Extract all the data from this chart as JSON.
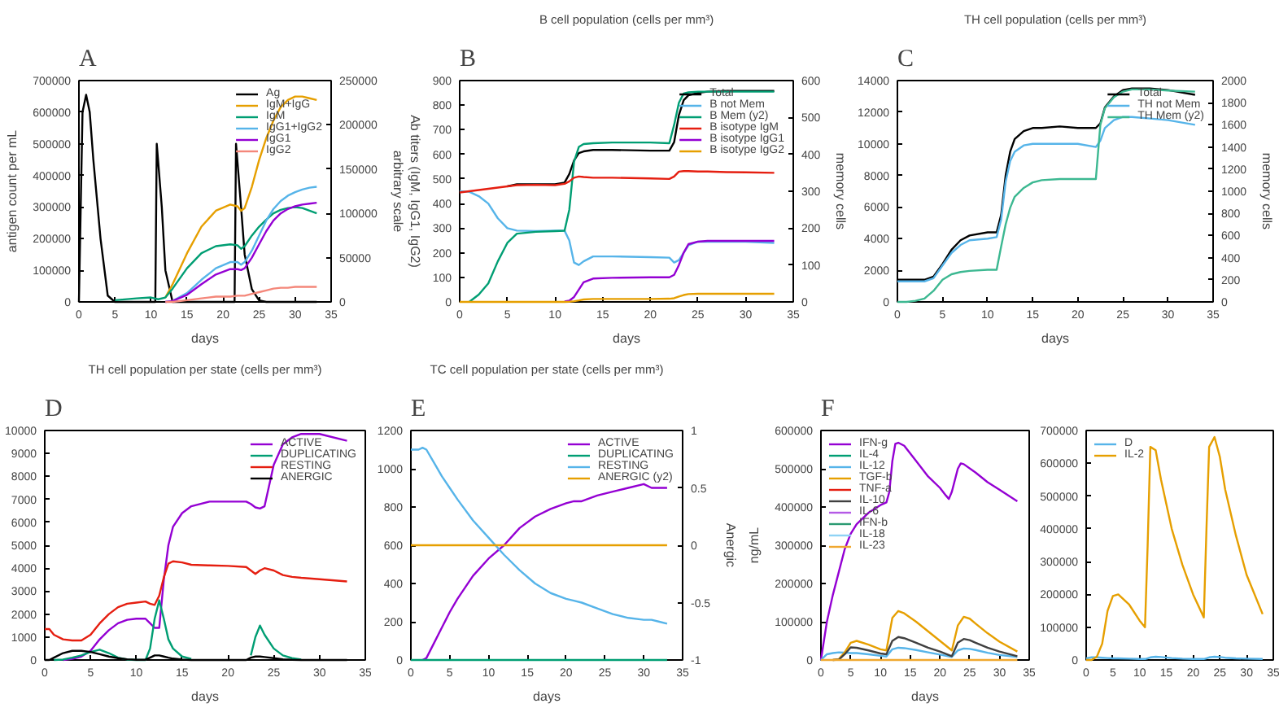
{
  "chart_data": [
    {
      "type": "line",
      "annotations": [
        "A"
      ],
      "xlabel": "days",
      "ylabel": "antigen count per mL",
      "y2label": "Ab titers (IgM, IgG1, IgG2)\narbitrary scale",
      "xlim": [
        0,
        35
      ],
      "xticks": [
        0,
        5,
        10,
        15,
        20,
        25,
        30,
        35
      ],
      "ylim": [
        0,
        700000
      ],
      "yticks": [
        0,
        100000,
        200000,
        300000,
        400000,
        500000,
        600000,
        700000
      ],
      "y2lim": [
        0,
        250000
      ],
      "y2ticks": [
        0,
        50000,
        100000,
        150000,
        200000,
        250000
      ],
      "legend": "top right",
      "x": [
        5,
        8,
        10,
        11,
        12,
        13,
        15,
        17,
        19,
        21,
        22,
        22.5,
        23,
        24,
        25,
        26,
        27,
        28,
        29,
        30,
        31,
        32,
        33
      ],
      "series": [
        {
          "name": "Ag",
          "color": "#000000",
          "x": [
            0,
            0.5,
            1,
            1.5,
            2,
            3,
            4,
            5,
            10,
            10.6,
            10.8,
            11.5,
            12,
            13,
            21,
            21.6,
            21.8,
            22.5,
            23,
            24,
            25,
            26,
            33
          ],
          "values": [
            0,
            600000,
            655000,
            600000,
            450000,
            200000,
            20000,
            0,
            0,
            0,
            500000,
            300000,
            100000,
            0,
            0,
            0,
            500000,
            300000,
            150000,
            40000,
            5000,
            0,
            0
          ]
        },
        {
          "name": "IgM+IgG",
          "color": "#e69f00",
          "axis": "y2",
          "values": [
            null,
            null,
            null,
            null,
            5000,
            20000,
            55000,
            85000,
            103000,
            110000,
            108000,
            103000,
            106000,
            130000,
            160000,
            185000,
            205000,
            220000,
            228000,
            232000,
            232000,
            230000,
            228000
          ]
        },
        {
          "name": "IgM",
          "color": "#009e73",
          "axis": "y2",
          "values": [
            2000,
            4000,
            5000,
            3000,
            5000,
            15000,
            38000,
            55000,
            63000,
            65000,
            64000,
            60000,
            63000,
            75000,
            85000,
            93000,
            100000,
            104000,
            106000,
            107000,
            106000,
            103000,
            100000
          ]
        },
        {
          "name": "IgG1+IgG2",
          "color": "#56b4e9",
          "axis": "y2",
          "values": [
            null,
            null,
            null,
            null,
            0,
            1000,
            10000,
            25000,
            38000,
            45000,
            45000,
            42000,
            45000,
            58000,
            75000,
            92000,
            105000,
            114000,
            120000,
            124000,
            127000,
            129000,
            130000
          ]
        },
        {
          "name": "IgG1",
          "color": "#9400d3",
          "axis": "y2",
          "values": [
            null,
            null,
            null,
            null,
            0,
            1000,
            8000,
            20000,
            31000,
            37000,
            37000,
            36000,
            38000,
            50000,
            65000,
            80000,
            92000,
            100000,
            105000,
            108000,
            110000,
            111000,
            112000
          ]
        },
        {
          "name": "IgG2",
          "color": "#f4877a",
          "axis": "y2",
          "values": [
            null,
            null,
            null,
            null,
            0,
            0,
            2000,
            4000,
            6000,
            6000,
            7000,
            7000,
            7000,
            9000,
            11000,
            13000,
            15000,
            16000,
            16000,
            17000,
            17000,
            17000,
            17000
          ]
        }
      ]
    },
    {
      "type": "line",
      "annotations": [
        "B"
      ],
      "title": "B cell population (cells per mm³)",
      "xlabel": "days",
      "y2label": "memory cells",
      "xlim": [
        0,
        35
      ],
      "xticks": [
        0,
        5,
        10,
        15,
        20,
        25,
        30,
        35
      ],
      "ylim": [
        0,
        900
      ],
      "yticks": [
        0,
        100,
        200,
        300,
        400,
        500,
        600,
        700,
        800,
        900
      ],
      "y2lim": [
        0,
        600
      ],
      "y2ticks": [
        0,
        100,
        200,
        300,
        400,
        500,
        600
      ],
      "legend": "top right",
      "x": [
        0,
        1,
        2,
        3,
        4,
        5,
        6,
        8,
        10,
        11,
        11.5,
        12,
        12.5,
        13,
        14,
        16,
        20,
        22,
        22.5,
        23,
        23.5,
        24,
        25,
        26,
        28,
        30,
        33
      ],
      "series": [
        {
          "name": "Total",
          "color": "#000000",
          "values": [
            null,
            null,
            null,
            null,
            null,
            470,
            478,
            478,
            478,
            485,
            520,
            575,
            605,
            612,
            618,
            618,
            615,
            615,
            650,
            760,
            820,
            840,
            850,
            855,
            858,
            858,
            858
          ]
        },
        {
          "name": "B not Mem",
          "color": "#56b4e9",
          "values": [
            450,
            448,
            430,
            400,
            340,
            300,
            290,
            288,
            290,
            290,
            250,
            160,
            150,
            165,
            185,
            185,
            182,
            180,
            160,
            170,
            200,
            230,
            245,
            245,
            245,
            245,
            240
          ]
        },
        {
          "name": "B Mem (y2)",
          "color": "#009e73",
          "axis": "y2",
          "values": [
            null,
            0,
            20,
            50,
            110,
            160,
            185,
            190,
            192,
            193,
            250,
            380,
            420,
            428,
            430,
            432,
            432,
            430,
            480,
            540,
            565,
            568,
            570,
            570,
            570,
            570,
            570
          ]
        },
        {
          "name": "B isotype IgM",
          "color": "#e51e10",
          "values": [
            445,
            450,
            455,
            460,
            465,
            470,
            475,
            476,
            475,
            480,
            490,
            505,
            510,
            508,
            505,
            505,
            502,
            500,
            510,
            530,
            532,
            532,
            530,
            530,
            528,
            527,
            525
          ]
        },
        {
          "name": "B isotype IgG1",
          "color": "#9400d3",
          "values": [
            null,
            null,
            null,
            null,
            null,
            null,
            null,
            null,
            null,
            2,
            5,
            20,
            50,
            80,
            95,
            98,
            100,
            100,
            110,
            150,
            200,
            235,
            245,
            248,
            248,
            248,
            248
          ]
        },
        {
          "name": "B isotype IgG2",
          "color": "#e69f00",
          "values": [
            0,
            0,
            0,
            0,
            0,
            0,
            0,
            0,
            0,
            0,
            1,
            3,
            6,
            10,
            12,
            12,
            12,
            13,
            15,
            22,
            28,
            32,
            33,
            33,
            33,
            33,
            33
          ]
        }
      ]
    },
    {
      "type": "line",
      "annotations": [
        "C"
      ],
      "title": "TH cell population (cells per mm³)",
      "xlabel": "days",
      "y2label": "memory cells",
      "xlim": [
        0,
        35
      ],
      "xticks": [
        0,
        5,
        10,
        15,
        20,
        25,
        30,
        35
      ],
      "ylim": [
        0,
        14000
      ],
      "yticks": [
        0,
        2000,
        4000,
        6000,
        8000,
        10000,
        12000,
        14000
      ],
      "y2lim": [
        0,
        2000
      ],
      "y2ticks": [
        0,
        200,
        400,
        600,
        800,
        1000,
        1200,
        1400,
        1600,
        1800,
        2000
      ],
      "legend": "top right",
      "x": [
        0,
        1,
        2,
        3,
        4,
        5,
        6,
        7,
        8,
        10,
        11,
        11.5,
        12,
        12.5,
        13,
        14,
        15,
        16,
        18,
        20,
        22,
        22.5,
        23,
        24,
        25,
        26,
        28,
        30,
        33
      ],
      "series": [
        {
          "name": "Total",
          "color": "#000000",
          "values": [
            1400,
            1400,
            1400,
            1400,
            1600,
            2400,
            3300,
            3900,
            4200,
            4400,
            4400,
            5500,
            8000,
            9500,
            10300,
            10800,
            11000,
            11000,
            11100,
            11000,
            11000,
            11300,
            12300,
            13000,
            13400,
            13500,
            13500,
            13400,
            13100
          ]
        },
        {
          "name": "TH not Mem",
          "color": "#56b4e9",
          "values": [
            1300,
            1300,
            1300,
            1300,
            1500,
            2300,
            3100,
            3600,
            3900,
            4000,
            4100,
            5200,
            7600,
            8900,
            9500,
            9900,
            10000,
            10000,
            10000,
            10000,
            9800,
            10200,
            11000,
            11500,
            11700,
            11700,
            11600,
            11500,
            11200
          ]
        },
        {
          "name": "TH Mem (y2)",
          "color": "#3cb891",
          "axis": "y2",
          "values": [
            0,
            0,
            10,
            30,
            100,
            200,
            250,
            270,
            280,
            290,
            290,
            500,
            700,
            850,
            950,
            1030,
            1080,
            1100,
            1110,
            1110,
            1110,
            1600,
            1750,
            1850,
            1900,
            1920,
            1920,
            1910,
            1900
          ]
        }
      ]
    },
    {
      "type": "line",
      "annotations": [
        "D"
      ],
      "title": "TH cell population per state (cells per mm³)",
      "xlabel": "days",
      "xlim": [
        0,
        35
      ],
      "xticks": [
        0,
        5,
        10,
        15,
        20,
        25,
        30,
        35
      ],
      "ylim": [
        0,
        10000
      ],
      "yticks": [
        0,
        1000,
        2000,
        3000,
        4000,
        5000,
        6000,
        7000,
        8000,
        9000,
        10000
      ],
      "legend": "top right",
      "x": [
        0,
        0.5,
        1,
        2,
        3,
        4,
        5,
        6,
        7,
        8,
        9,
        10,
        11,
        11.5,
        12,
        12.5,
        13,
        13.5,
        14,
        15,
        16,
        18,
        20,
        22,
        22.5,
        23,
        23.5,
        24,
        25,
        26,
        27,
        28,
        30,
        33
      ],
      "series": [
        {
          "name": "ACTIVE",
          "color": "#9400d3",
          "values": [
            null,
            null,
            null,
            0,
            50,
            150,
            400,
            900,
            1300,
            1600,
            1750,
            1800,
            1800,
            1600,
            1400,
            1400,
            3500,
            5000,
            5800,
            6400,
            6700,
            6900,
            6900,
            6900,
            6800,
            6650,
            6600,
            6700,
            8500,
            9400,
            9700,
            9850,
            9850,
            9550
          ]
        },
        {
          "name": "DUPLICATING",
          "color": "#009e73",
          "values": [
            null,
            null,
            0,
            20,
            100,
            200,
            350,
            450,
            300,
            100,
            20,
            0,
            0,
            500,
            1800,
            2600,
            1800,
            900,
            500,
            150,
            50,
            null,
            null,
            null,
            200,
            1000,
            1500,
            1100,
            500,
            200,
            80,
            20,
            null,
            null
          ]
        },
        {
          "name": "RESTING",
          "color": "#e51e10",
          "values": [
            1350,
            1350,
            1100,
            900,
            850,
            850,
            1100,
            1600,
            2000,
            2300,
            2450,
            2500,
            2550,
            2450,
            2400,
            2800,
            3600,
            4200,
            4300,
            4250,
            4150,
            4120,
            4100,
            4050,
            3900,
            3750,
            3900,
            4000,
            3900,
            3700,
            3620,
            3580,
            3520,
            3420
          ]
        },
        {
          "name": "ANERGIC",
          "color": "#000000",
          "values": [
            0,
            0,
            100,
            300,
            400,
            400,
            350,
            250,
            150,
            80,
            30,
            10,
            10,
            100,
            200,
            200,
            150,
            100,
            60,
            20,
            0,
            0,
            0,
            0,
            100,
            150,
            150,
            130,
            80,
            30,
            10,
            0,
            0,
            0
          ]
        }
      ]
    },
    {
      "type": "line",
      "annotations": [
        "E"
      ],
      "title": "TC cell population per state (cells per mm³)",
      "xlabel": "days",
      "y2label": "Anergic",
      "xlim": [
        0,
        35
      ],
      "xticks": [
        0,
        5,
        10,
        15,
        20,
        25,
        30,
        35
      ],
      "ylim": [
        0,
        1200
      ],
      "yticks": [
        0,
        200,
        400,
        600,
        800,
        1000,
        1200
      ],
      "y2lim": [
        -1,
        1
      ],
      "y2ticks": [
        -1,
        -0.5,
        0,
        0.5,
        1
      ],
      "legend": "top right",
      "x": [
        0,
        1,
        1.5,
        2,
        3,
        4,
        5,
        6,
        8,
        10,
        12,
        14,
        16,
        18,
        20,
        21,
        22,
        24,
        26,
        28,
        30,
        31,
        32,
        33
      ],
      "series": [
        {
          "name": "ACTIVE",
          "color": "#9400d3",
          "values": [
            null,
            null,
            0,
            10,
            90,
            170,
            250,
            320,
            440,
            530,
            600,
            690,
            750,
            790,
            820,
            830,
            830,
            860,
            880,
            900,
            920,
            900,
            900,
            900
          ]
        },
        {
          "name": "DUPLICATING",
          "color": "#009e73",
          "values": [
            0,
            0,
            0,
            0,
            0,
            0,
            0,
            0,
            0,
            0,
            0,
            0,
            0,
            0,
            0,
            0,
            0,
            0,
            0,
            0,
            0,
            0,
            0,
            0
          ]
        },
        {
          "name": "RESTING",
          "color": "#56b4e9",
          "values": [
            1100,
            1100,
            1110,
            1100,
            1030,
            960,
            900,
            840,
            730,
            640,
            550,
            470,
            400,
            350,
            320,
            310,
            300,
            270,
            240,
            220,
            210,
            210,
            200,
            190
          ]
        },
        {
          "name": "ANERGIC (y2)",
          "color": "#e69f00",
          "axis": "y2",
          "values": [
            0,
            0,
            0,
            0,
            0,
            0,
            0,
            0,
            0,
            0,
            0,
            0,
            0,
            0,
            0,
            0,
            0,
            0,
            0,
            0,
            0,
            0,
            0,
            0
          ]
        }
      ]
    },
    {
      "type": "line",
      "annotations": [
        "F"
      ],
      "xlabel": "days",
      "ylabel": "ng/mL",
      "xlim": [
        0,
        35
      ],
      "xticks": [
        0,
        5,
        10,
        15,
        20,
        25,
        30,
        35
      ],
      "ylim": [
        0,
        600000
      ],
      "yticks": [
        0,
        100000,
        200000,
        300000,
        400000,
        500000,
        600000
      ],
      "legend": "top left",
      "x": [
        0,
        1,
        2,
        3,
        4,
        5,
        6,
        8,
        10,
        11,
        12,
        13,
        14,
        16,
        18,
        20,
        22,
        23,
        24,
        25,
        26,
        28,
        30,
        33
      ],
      "series": [
        {
          "name": "IFN-g",
          "color": "#9400d3",
          "x": [
            0,
            1,
            2,
            3,
            4,
            5,
            6,
            8,
            10,
            11,
            11.5,
            12,
            12.5,
            13,
            14,
            16,
            18,
            20,
            21,
            21.5,
            22,
            23,
            23.5,
            24,
            26,
            28,
            30,
            33
          ],
          "values": [
            0,
            100000,
            170000,
            230000,
            290000,
            330000,
            355000,
            385000,
            405000,
            412000,
            440000,
            520000,
            565000,
            568000,
            560000,
            520000,
            480000,
            450000,
            430000,
            421000,
            440000,
            500000,
            514000,
            512000,
            490000,
            465000,
            445000,
            415000
          ]
        },
        {
          "name": "IL-4",
          "color": "#009e73",
          "values": [
            null,
            null,
            null,
            null,
            null,
            null,
            null,
            null,
            null,
            null,
            null,
            null,
            null,
            null,
            null,
            null,
            null,
            null,
            null,
            null,
            null,
            null,
            null,
            null
          ]
        },
        {
          "name": "IL-12",
          "color": "#56b4e9",
          "values": [
            0,
            15000,
            18000,
            20000,
            19000,
            18000,
            18000,
            15000,
            11000,
            9000,
            28000,
            32000,
            31000,
            26000,
            20000,
            14000,
            8000,
            25000,
            30000,
            29000,
            26000,
            19000,
            13000,
            8000
          ]
        },
        {
          "name": "TGF-b",
          "color": "#e69f00",
          "values": [
            null,
            null,
            0,
            2000,
            20000,
            45000,
            50000,
            40000,
            28000,
            25000,
            110000,
            128000,
            122000,
            100000,
            75000,
            50000,
            25000,
            90000,
            113000,
            108000,
            95000,
            70000,
            48000,
            22000
          ]
        },
        {
          "name": "TNF-a",
          "color": "#e51e10",
          "values": [
            null,
            null,
            null,
            null,
            null,
            null,
            null,
            null,
            null,
            null,
            null,
            null,
            null,
            null,
            null,
            null,
            null,
            null,
            null,
            null,
            null,
            null,
            null,
            null
          ]
        },
        {
          "name": "IL-10",
          "color": "#404040",
          "values": [
            null,
            null,
            0,
            1000,
            15000,
            33000,
            32000,
            25000,
            17000,
            15000,
            50000,
            60000,
            57000,
            45000,
            32000,
            22000,
            10000,
            45000,
            55000,
            52000,
            45000,
            32000,
            22000,
            10000
          ]
        },
        {
          "name": "IL-6",
          "color": "#b45ae6",
          "values": [
            null,
            null,
            null,
            null,
            null,
            null,
            null,
            null,
            null,
            null,
            null,
            null,
            null,
            null,
            null,
            null,
            null,
            null,
            null,
            null,
            null,
            null,
            null,
            null
          ]
        },
        {
          "name": "IFN-b",
          "color": "#2a9a72",
          "values": [
            null,
            null,
            null,
            null,
            null,
            null,
            null,
            null,
            null,
            null,
            null,
            null,
            null,
            null,
            null,
            null,
            null,
            null,
            null,
            null,
            null,
            null,
            null,
            null
          ]
        },
        {
          "name": "IL-18",
          "color": "#8fd3f5",
          "values": [
            null,
            null,
            null,
            null,
            null,
            null,
            null,
            null,
            null,
            null,
            null,
            null,
            null,
            null,
            null,
            null,
            null,
            null,
            null,
            null,
            null,
            null,
            null,
            null
          ]
        },
        {
          "name": "IL-23",
          "color": "#f0a830",
          "values": [
            0,
            0,
            0,
            0,
            0,
            0,
            0,
            0,
            0,
            0,
            0,
            0,
            0,
            0,
            0,
            0,
            0,
            0,
            0,
            0,
            0,
            0,
            0,
            0
          ]
        }
      ]
    },
    {
      "type": "line",
      "xlim": [
        0,
        35
      ],
      "xticks": [
        0,
        5,
        10,
        15,
        20,
        25,
        30,
        35
      ],
      "ylim": [
        0,
        700000
      ],
      "yticks": [
        0,
        100000,
        200000,
        300000,
        400000,
        500000,
        600000,
        700000
      ],
      "legend": "top left",
      "x": [
        0,
        1,
        2,
        3,
        4,
        5,
        6,
        8,
        10,
        11,
        11.5,
        12,
        13,
        14,
        16,
        18,
        20,
        22,
        22.5,
        23,
        24,
        25,
        26,
        28,
        30,
        33
      ],
      "series": [
        {
          "name": "D",
          "color": "#56b4e9",
          "values": [
            5000,
            8000,
            8000,
            7000,
            6000,
            5000,
            5000,
            4000,
            3000,
            3000,
            5000,
            8000,
            10000,
            9000,
            6000,
            4000,
            3000,
            3000,
            5000,
            8000,
            10000,
            9000,
            7000,
            5000,
            4000,
            3000
          ]
        },
        {
          "name": "IL-2",
          "color": "#e69f00",
          "values": [
            0,
            0,
            10000,
            50000,
            150000,
            195000,
            200000,
            170000,
            120000,
            100000,
            350000,
            650000,
            640000,
            550000,
            400000,
            290000,
            200000,
            130000,
            400000,
            650000,
            680000,
            620000,
            520000,
            380000,
            260000,
            140000
          ]
        }
      ]
    }
  ]
}
